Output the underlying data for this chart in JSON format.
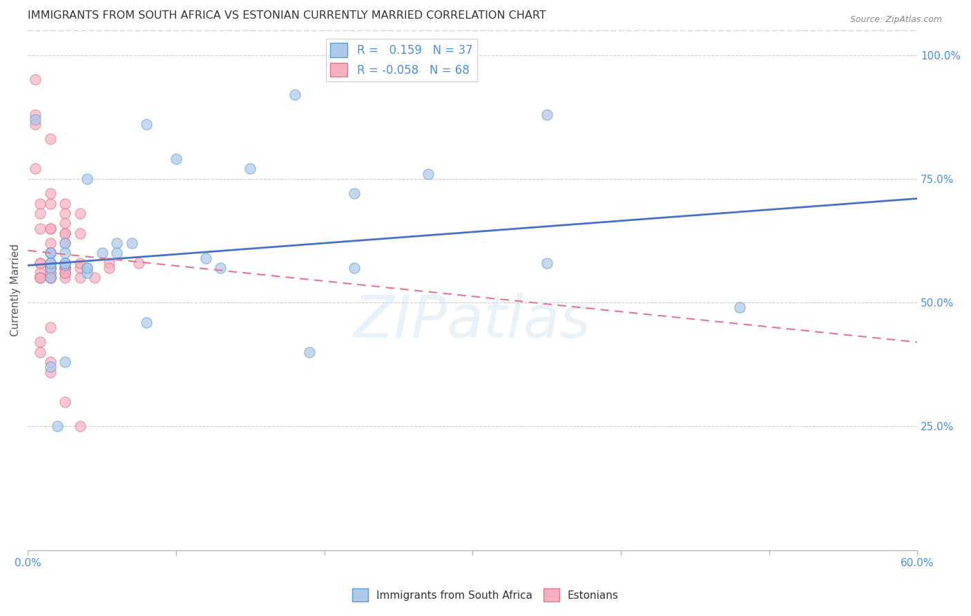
{
  "title": "IMMIGRANTS FROM SOUTH AFRICA VS ESTONIAN CURRENTLY MARRIED CORRELATION CHART",
  "source": "Source: ZipAtlas.com",
  "ylabel": "Currently Married",
  "xlim": [
    0.0,
    0.6
  ],
  "ylim": [
    0.0,
    1.05
  ],
  "xtick_vals": [
    0.0,
    0.1,
    0.2,
    0.3,
    0.4,
    0.5,
    0.6
  ],
  "xtick_labels_show": [
    "0.0%",
    "",
    "",
    "",
    "",
    "",
    "60.0%"
  ],
  "ytick_vals": [
    0.25,
    0.5,
    0.75,
    1.0
  ],
  "ytick_labels": [
    "25.0%",
    "50.0%",
    "75.0%",
    "100.0%"
  ],
  "blue_R": 0.159,
  "blue_N": 37,
  "pink_R": -0.058,
  "pink_N": 68,
  "blue_color": "#adc8e8",
  "pink_color": "#f5b0c0",
  "blue_edge_color": "#5b9bd5",
  "pink_edge_color": "#e87090",
  "blue_line_color": "#4472c4",
  "pink_line_color": "#e87090",
  "watermark": "ZIPatlas",
  "blue_points_x": [
    0.005,
    0.08,
    0.18,
    0.04,
    0.1,
    0.025,
    0.025,
    0.015,
    0.04,
    0.06,
    0.15,
    0.22,
    0.025,
    0.025,
    0.015,
    0.04,
    0.35,
    0.22,
    0.12,
    0.27,
    0.48,
    0.35,
    0.06,
    0.025,
    0.015,
    0.05,
    0.07,
    0.13,
    0.19,
    0.08,
    0.02,
    0.015,
    0.015,
    0.025,
    0.015,
    0.015,
    0.04
  ],
  "blue_points_y": [
    0.87,
    0.86,
    0.92,
    0.75,
    0.79,
    0.62,
    0.6,
    0.58,
    0.57,
    0.62,
    0.77,
    0.72,
    0.575,
    0.58,
    0.6,
    0.56,
    0.88,
    0.57,
    0.59,
    0.76,
    0.49,
    0.58,
    0.6,
    0.38,
    0.37,
    0.6,
    0.62,
    0.57,
    0.4,
    0.46,
    0.25,
    0.6,
    0.57,
    0.58,
    0.55,
    0.58,
    0.57
  ],
  "pink_points_x": [
    0.005,
    0.005,
    0.005,
    0.015,
    0.005,
    0.008,
    0.008,
    0.008,
    0.015,
    0.015,
    0.025,
    0.025,
    0.015,
    0.025,
    0.015,
    0.025,
    0.035,
    0.035,
    0.025,
    0.025,
    0.015,
    0.015,
    0.015,
    0.015,
    0.008,
    0.015,
    0.025,
    0.025,
    0.015,
    0.035,
    0.035,
    0.008,
    0.015,
    0.008,
    0.015,
    0.008,
    0.025,
    0.015,
    0.025,
    0.015,
    0.008,
    0.008,
    0.015,
    0.025,
    0.075,
    0.055,
    0.025,
    0.025,
    0.035,
    0.025,
    0.015,
    0.055,
    0.015,
    0.015,
    0.015,
    0.015,
    0.045,
    0.025,
    0.035,
    0.015,
    0.015,
    0.008,
    0.025,
    0.015,
    0.025,
    0.015,
    0.008,
    0.015
  ],
  "pink_points_y": [
    0.95,
    0.88,
    0.86,
    0.83,
    0.77,
    0.7,
    0.68,
    0.65,
    0.72,
    0.7,
    0.7,
    0.68,
    0.65,
    0.66,
    0.65,
    0.64,
    0.68,
    0.64,
    0.64,
    0.62,
    0.62,
    0.6,
    0.58,
    0.57,
    0.58,
    0.58,
    0.58,
    0.57,
    0.56,
    0.57,
    0.58,
    0.56,
    0.55,
    0.55,
    0.57,
    0.58,
    0.56,
    0.55,
    0.57,
    0.58,
    0.42,
    0.4,
    0.57,
    0.55,
    0.58,
    0.58,
    0.57,
    0.56,
    0.55,
    0.57,
    0.45,
    0.57,
    0.38,
    0.36,
    0.57,
    0.55,
    0.55,
    0.3,
    0.25,
    0.58,
    0.57,
    0.55,
    0.57,
    0.55,
    0.56,
    0.57,
    0.55,
    0.56
  ],
  "blue_trend_x": [
    0.0,
    0.6
  ],
  "blue_trend_y": [
    0.575,
    0.71
  ],
  "pink_trend_x": [
    0.0,
    0.6
  ],
  "pink_trend_y": [
    0.605,
    0.42
  ]
}
